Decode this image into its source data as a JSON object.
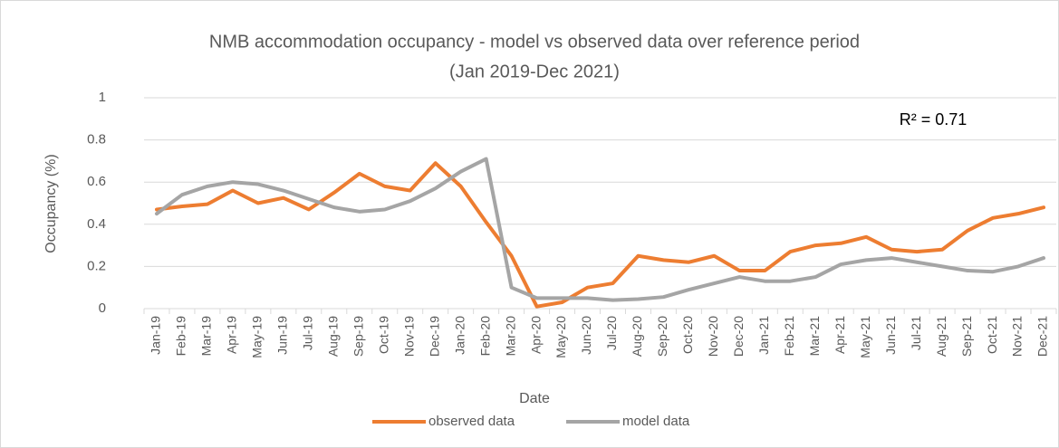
{
  "chart_data": {
    "type": "line",
    "title": "NMB accommodation occupancy - model vs observed data over reference period",
    "subtitle": "(Jan 2019-Dec 2021)",
    "x_label": "Date",
    "y_label": "Occupancy (%)",
    "annotation": "R² = 0.71",
    "categories": [
      "Jan-19",
      "Feb-19",
      "Mar-19",
      "Apr-19",
      "May-19",
      "Jun-19",
      "Jul-19",
      "Aug-19",
      "Sep-19",
      "Oct-19",
      "Nov-19",
      "Dec-19",
      "Jan-20",
      "Feb-20",
      "Mar-20",
      "Apr-20",
      "May-20",
      "Jun-20",
      "Jul-20",
      "Aug-20",
      "Sep-20",
      "Oct-20",
      "Nov-20",
      "Dec-20",
      "Jan-21",
      "Feb-21",
      "Mar-21",
      "Apr-21",
      "May-21",
      "Jun-21",
      "Jul-21",
      "Aug-21",
      "Sep-21",
      "Oct-21",
      "Nov-21",
      "Dec-21"
    ],
    "series": [
      {
        "name": "observed data",
        "color": "#ed7d31",
        "values": [
          0.47,
          0.485,
          0.495,
          0.56,
          0.5,
          0.525,
          0.47,
          0.55,
          0.64,
          0.58,
          0.56,
          0.69,
          0.58,
          0.41,
          0.25,
          0.01,
          0.03,
          0.1,
          0.12,
          0.25,
          0.23,
          0.22,
          0.25,
          0.18,
          0.18,
          0.27,
          0.3,
          0.31,
          0.34,
          0.28,
          0.27,
          0.28,
          0.37,
          0.43,
          0.45,
          0.48
        ]
      },
      {
        "name": "model data",
        "color": "#a5a5a5",
        "values": [
          0.45,
          0.54,
          0.58,
          0.6,
          0.59,
          0.56,
          0.52,
          0.48,
          0.46,
          0.47,
          0.51,
          0.57,
          0.65,
          0.71,
          0.1,
          0.05,
          0.05,
          0.05,
          0.04,
          0.045,
          0.055,
          0.09,
          0.12,
          0.15,
          0.13,
          0.13,
          0.15,
          0.21,
          0.23,
          0.24,
          0.22,
          0.2,
          0.18,
          0.175,
          0.2,
          0.24
        ]
      }
    ],
    "ylim": [
      0,
      1
    ],
    "yticks": [
      0,
      0.2,
      0.4,
      0.6,
      0.8,
      1
    ],
    "grid": true,
    "legend": "bottom"
  }
}
